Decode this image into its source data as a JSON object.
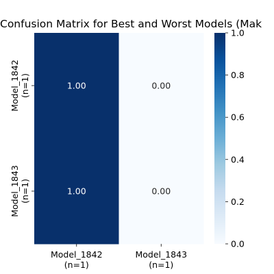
{
  "chart_data": {
    "type": "heatmap",
    "title": "Confusion Matrix for Best and Worst Models (Mak",
    "x_categories": [
      "Model_1842\n(n=1)",
      "Model_1843\n(n=1)"
    ],
    "y_categories": [
      "Model_1842\n(n=1)",
      "Model_1843\n(n=1)"
    ],
    "values": [
      [
        1.0,
        0.0
      ],
      [
        1.0,
        0.0
      ]
    ],
    "cell_labels": [
      [
        "1.00",
        "0.00"
      ],
      [
        "1.00",
        "0.00"
      ]
    ],
    "colormap": "Blues",
    "colors": {
      "low": "#f7fbff",
      "high": "#08306b"
    },
    "colorbar": {
      "range": [
        0.0,
        1.0
      ],
      "ticks": [
        "0.0",
        "0.2",
        "0.4",
        "0.6",
        "0.8",
        "1.0"
      ]
    },
    "xlabel": "",
    "ylabel": ""
  }
}
